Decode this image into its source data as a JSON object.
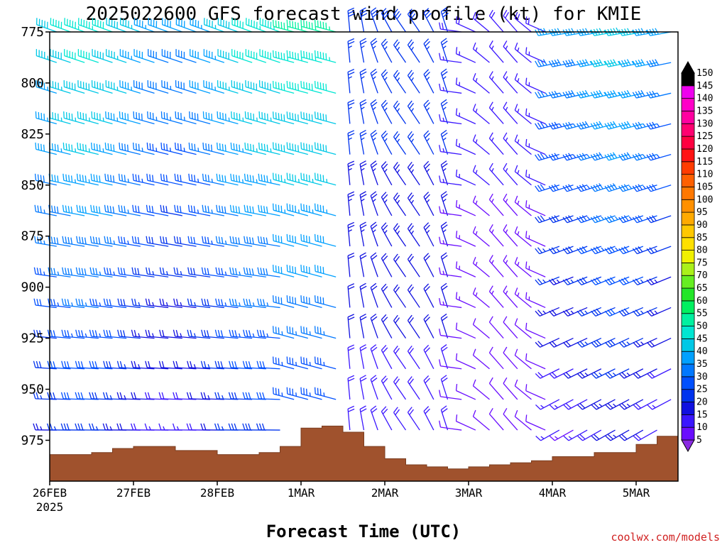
{
  "chart_data": {
    "type": "wind_barbs",
    "title": "2025022600 GFS forecast wind profile (kt) for KMIE",
    "xlabel": "Forecast Time (UTC)",
    "credit": "coolwx.com/models",
    "y_ticks": [
      775,
      800,
      825,
      850,
      875,
      900,
      925,
      950,
      975
    ],
    "ylim": [
      775,
      995
    ],
    "x_ticks": [
      {
        "t": 0,
        "label": "26FEB",
        "sub": "2025"
      },
      {
        "t": 24,
        "label": "27FEB"
      },
      {
        "t": 48,
        "label": "28FEB"
      },
      {
        "t": 72,
        "label": "1MAR"
      },
      {
        "t": 96,
        "label": "2MAR"
      },
      {
        "t": 120,
        "label": "3MAR"
      },
      {
        "t": 144,
        "label": "4MAR"
      },
      {
        "t": 168,
        "label": "5MAR"
      }
    ],
    "xlim_hours": [
      0,
      180
    ],
    "barb_levels_hPa": [
      775,
      790,
      805,
      820,
      835,
      850,
      865,
      880,
      895,
      910,
      925,
      940,
      955,
      970
    ],
    "barb_interval_hours": 12,
    "colorbar": {
      "levels": [
        5,
        10,
        15,
        20,
        25,
        30,
        35,
        40,
        45,
        50,
        55,
        60,
        65,
        70,
        75,
        80,
        85,
        90,
        95,
        100,
        105,
        110,
        115,
        120,
        125,
        130,
        135,
        140,
        145,
        150
      ],
      "colors": [
        "#8a2be2",
        "#6a0dff",
        "#3a16ff",
        "#1010e0",
        "#0033ee",
        "#0050ff",
        "#0078ff",
        "#00a0ff",
        "#00c8e6",
        "#00e6d2",
        "#00f0a0",
        "#00f060",
        "#22e628",
        "#66ee22",
        "#aaf01a",
        "#f0f000",
        "#ffe000",
        "#ffc800",
        "#ffaa00",
        "#ff9000",
        "#ff7800",
        "#ff6000",
        "#ff3c00",
        "#ff1414",
        "#ff0040",
        "#ff0070",
        "#ff00a0",
        "#ff00c8",
        "#ee00ee",
        "#000000"
      ]
    },
    "terrain": {
      "color": "#a0522d",
      "pressure_hPa": [
        [
          0,
          982
        ],
        [
          6,
          982
        ],
        [
          12,
          981
        ],
        [
          18,
          979
        ],
        [
          24,
          978
        ],
        [
          30,
          978
        ],
        [
          36,
          980
        ],
        [
          42,
          980
        ],
        [
          48,
          982
        ],
        [
          54,
          982
        ],
        [
          60,
          981
        ],
        [
          66,
          978
        ],
        [
          72,
          969
        ],
        [
          78,
          968
        ],
        [
          84,
          971
        ],
        [
          90,
          978
        ],
        [
          96,
          984
        ],
        [
          102,
          987
        ],
        [
          108,
          988
        ],
        [
          114,
          989
        ],
        [
          120,
          988
        ],
        [
          126,
          987
        ],
        [
          132,
          986
        ],
        [
          138,
          985
        ],
        [
          144,
          983
        ],
        [
          150,
          983
        ],
        [
          156,
          981
        ],
        [
          162,
          981
        ],
        [
          168,
          977
        ],
        [
          174,
          973
        ],
        [
          180,
          970
        ]
      ]
    }
  }
}
